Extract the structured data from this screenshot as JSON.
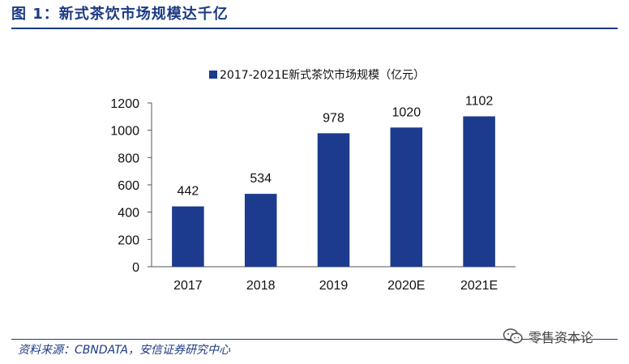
{
  "figure": {
    "label": "图 1：",
    "title": "新式茶饮市场规模达千亿"
  },
  "chart_data": {
    "type": "bar",
    "title": "",
    "legend": "2017-2021E新式茶饮市场规模（亿元）",
    "legend_position": "top",
    "categories": [
      "2017",
      "2018",
      "2019",
      "2020E",
      "2021E"
    ],
    "values": [
      442,
      534,
      978,
      1020,
      1102
    ],
    "data_labels": [
      "442",
      "534",
      "978",
      "1020",
      "1102"
    ],
    "ylim": [
      0,
      1200
    ],
    "yticks": [
      "0",
      "200",
      "400",
      "600",
      "800",
      "1000",
      "1200"
    ],
    "xlabel": "",
    "ylabel": "",
    "grid": false,
    "bar_color": "#1c3a8e"
  },
  "source": "资料来源：CBNDATA，安信证券研究中心",
  "watermark": {
    "text": "零售资本论",
    "icon": "wechat-icon"
  },
  "colors": {
    "accent": "#1c3a84",
    "bar": "#1c3a8e"
  }
}
